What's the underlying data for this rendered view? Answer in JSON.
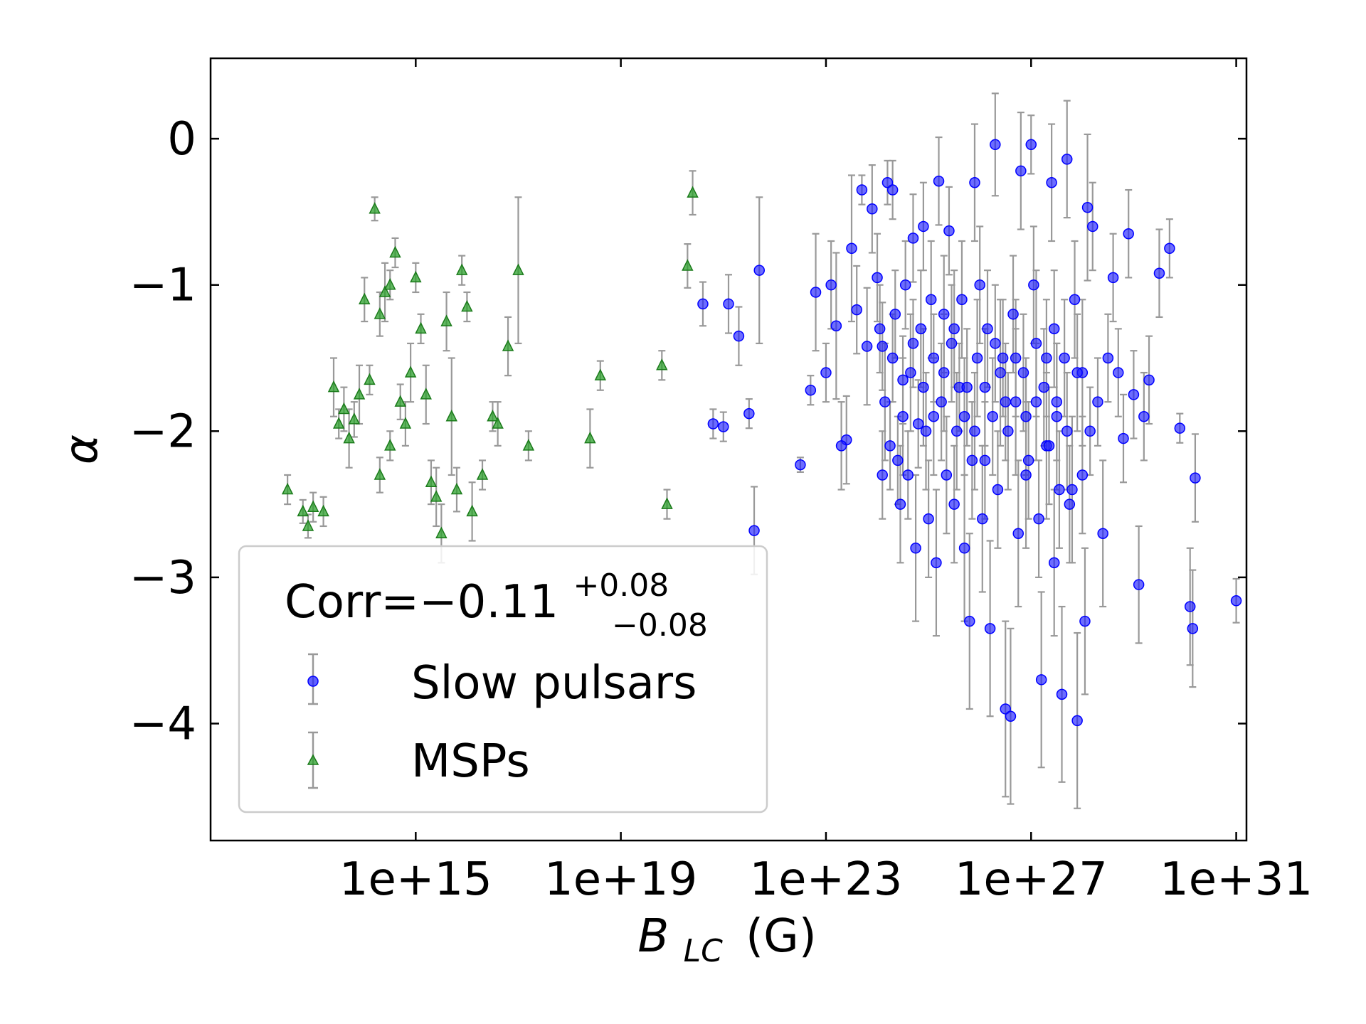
{
  "chart_data": {
    "type": "scatter",
    "title": "",
    "xlabel_main": "B",
    "xlabel_sub": "LC",
    "xlabel_unit": "(G)",
    "ylabel": "α",
    "xscale": "log",
    "xlim_exp": [
      11.0,
      31.2
    ],
    "ylim": [
      -4.8,
      0.55
    ],
    "x_ticks": [
      "1e+15",
      "1e+19",
      "1e+23",
      "1e+27",
      "1e+31"
    ],
    "x_tick_exps": [
      15,
      19,
      23,
      27,
      31
    ],
    "y_ticks": [
      0,
      -1,
      -2,
      -3,
      -4
    ],
    "y_tick_labels": [
      "0",
      "−1",
      "−2",
      "−3",
      "−4"
    ],
    "grid": false,
    "legend": {
      "placement": "lower-left",
      "corr_prefix": "Corr=−0.11",
      "corr_sup": "+0.08",
      "corr_sub": "−0.08",
      "entries": [
        "Slow pulsars",
        "MSPs"
      ]
    },
    "colors": {
      "slow": "#1f1fff",
      "msp": "#2ca02c",
      "errorbar": "#999999"
    },
    "series": [
      {
        "name": "MSPs",
        "marker": "triangle",
        "points": [
          [
            12.5,
            -2.4,
            0.1
          ],
          [
            12.8,
            -2.55,
            0.08
          ],
          [
            12.9,
            -2.65,
            0.08
          ],
          [
            13.0,
            -2.52,
            0.1
          ],
          [
            13.2,
            -2.55,
            0.1
          ],
          [
            13.4,
            -1.7,
            0.2
          ],
          [
            13.5,
            -1.95,
            0.1
          ],
          [
            13.6,
            -1.85,
            0.15
          ],
          [
            13.7,
            -2.05,
            0.2
          ],
          [
            13.9,
            -1.75,
            0.2
          ],
          [
            14.0,
            -1.1,
            0.15
          ],
          [
            14.1,
            -1.65,
            0.1
          ],
          [
            14.2,
            -0.48,
            0.08
          ],
          [
            14.3,
            -1.2,
            0.15
          ],
          [
            14.4,
            -1.05,
            0.2
          ],
          [
            14.5,
            -1.0,
            0.1
          ],
          [
            14.6,
            -0.78,
            0.1
          ],
          [
            14.7,
            -1.8,
            0.12
          ],
          [
            14.8,
            -1.95,
            0.15
          ],
          [
            14.9,
            -1.6,
            0.2
          ],
          [
            15.0,
            -0.95,
            0.1
          ],
          [
            15.1,
            -1.3,
            0.1
          ],
          [
            15.2,
            -1.75,
            0.2
          ],
          [
            15.3,
            -2.35,
            0.15
          ],
          [
            15.4,
            -2.45,
            0.2
          ],
          [
            15.5,
            -2.7,
            0.2
          ],
          [
            15.6,
            -1.25,
            0.2
          ],
          [
            15.7,
            -1.9,
            0.4
          ],
          [
            15.8,
            -2.4,
            0.15
          ],
          [
            16.0,
            -1.15,
            0.1
          ],
          [
            16.1,
            -2.55,
            0.2
          ],
          [
            16.3,
            -2.3,
            0.1
          ],
          [
            16.5,
            -1.9,
            0.1
          ],
          [
            16.6,
            -1.95,
            0.15
          ],
          [
            15.9,
            -0.9,
            0.1
          ],
          [
            14.3,
            -2.3,
            0.12
          ],
          [
            14.5,
            -2.1,
            0.1
          ],
          [
            13.8,
            -1.92,
            0.12
          ],
          [
            16.8,
            -1.42,
            0.2
          ],
          [
            17.0,
            -0.9,
            0.5
          ],
          [
            17.2,
            -2.1,
            0.1
          ],
          [
            18.4,
            -2.05,
            0.2
          ],
          [
            18.6,
            -1.62,
            0.1
          ],
          [
            19.8,
            -1.55,
            0.1
          ],
          [
            19.9,
            -2.5,
            0.1
          ],
          [
            20.4,
            -0.37,
            0.15
          ],
          [
            20.3,
            -0.87,
            0.15
          ]
        ]
      },
      {
        "name": "Slow pulsars",
        "marker": "circle",
        "points": [
          [
            20.6,
            -1.13,
            0.15
          ],
          [
            20.8,
            -1.95,
            0.1
          ],
          [
            21.0,
            -1.97,
            0.1
          ],
          [
            21.1,
            -1.13,
            0.2
          ],
          [
            21.3,
            -1.35,
            0.2
          ],
          [
            21.5,
            -1.88,
            0.1
          ],
          [
            21.6,
            -2.68,
            0.3
          ],
          [
            21.7,
            -0.9,
            0.5
          ],
          [
            22.5,
            -2.23,
            0.05
          ],
          [
            22.7,
            -1.72,
            0.1
          ],
          [
            22.8,
            -1.05,
            0.4
          ],
          [
            23.2,
            -1.28,
            0.5
          ],
          [
            23.4,
            -2.06,
            0.3
          ],
          [
            23.5,
            -0.75,
            0.5
          ],
          [
            23.6,
            -1.17,
            0.3
          ],
          [
            23.7,
            -0.35,
            0.1
          ],
          [
            23.8,
            -1.42,
            0.4
          ],
          [
            23.9,
            -0.48,
            0.3
          ],
          [
            24.0,
            -0.95,
            0.3
          ],
          [
            24.1,
            -1.42,
            0.3
          ],
          [
            24.2,
            -0.3,
            0.15
          ],
          [
            24.3,
            -0.35,
            0.2
          ],
          [
            24.4,
            -2.2,
            0.3
          ],
          [
            24.5,
            -1.65,
            0.3
          ],
          [
            24.6,
            -2.3,
            0.3
          ],
          [
            24.7,
            -0.68,
            0.3
          ],
          [
            24.8,
            -1.95,
            0.3
          ],
          [
            24.9,
            -0.6,
            0.3
          ],
          [
            25.0,
            -2.6,
            0.4
          ],
          [
            25.1,
            -1.5,
            0.3
          ],
          [
            25.2,
            -0.29,
            0.3
          ],
          [
            25.3,
            -1.2,
            0.4
          ],
          [
            25.4,
            -0.63,
            0.3
          ],
          [
            25.5,
            -2.5,
            0.4
          ],
          [
            25.6,
            -1.7,
            0.3
          ],
          [
            25.7,
            -2.8,
            0.5
          ],
          [
            25.8,
            -3.3,
            0.6
          ],
          [
            25.9,
            -0.3,
            0.4
          ],
          [
            26.0,
            -1.0,
            0.4
          ],
          [
            26.1,
            -2.2,
            0.4
          ],
          [
            26.2,
            -3.35,
            0.6
          ],
          [
            26.3,
            -0.04,
            0.35
          ],
          [
            26.4,
            -1.6,
            0.5
          ],
          [
            26.5,
            -3.9,
            0.6
          ],
          [
            26.6,
            -3.95,
            0.6
          ],
          [
            26.7,
            -1.8,
            0.5
          ],
          [
            26.8,
            -0.22,
            0.4
          ],
          [
            26.9,
            -2.3,
            0.5
          ],
          [
            27.0,
            -0.04,
            0.2
          ],
          [
            27.1,
            -1.4,
            0.5
          ],
          [
            27.2,
            -3.7,
            0.6
          ],
          [
            27.3,
            -2.1,
            0.5
          ],
          [
            27.4,
            -0.3,
            0.4
          ],
          [
            27.5,
            -1.9,
            0.5
          ],
          [
            27.6,
            -3.8,
            0.6
          ],
          [
            27.7,
            -0.14,
            0.4
          ],
          [
            27.8,
            -2.4,
            0.5
          ],
          [
            27.9,
            -3.98,
            0.6
          ],
          [
            28.0,
            -1.6,
            0.5
          ],
          [
            28.1,
            -0.47,
            0.5
          ],
          [
            23.0,
            -1.6,
            0.2
          ],
          [
            23.1,
            -1.0,
            0.3
          ],
          [
            23.3,
            -2.1,
            0.3
          ],
          [
            24.05,
            -1.3,
            0.3
          ],
          [
            24.15,
            -1.8,
            0.4
          ],
          [
            24.25,
            -2.1,
            0.3
          ],
          [
            24.35,
            -1.2,
            0.3
          ],
          [
            24.45,
            -2.5,
            0.4
          ],
          [
            24.55,
            -1.0,
            0.3
          ],
          [
            24.65,
            -1.6,
            0.4
          ],
          [
            24.75,
            -2.8,
            0.5
          ],
          [
            24.85,
            -1.3,
            0.4
          ],
          [
            24.95,
            -2.0,
            0.4
          ],
          [
            25.05,
            -1.1,
            0.4
          ],
          [
            25.15,
            -2.9,
            0.5
          ],
          [
            25.25,
            -1.8,
            0.4
          ],
          [
            25.35,
            -2.3,
            0.4
          ],
          [
            25.45,
            -1.4,
            0.4
          ],
          [
            25.55,
            -2.0,
            0.4
          ],
          [
            25.65,
            -1.1,
            0.4
          ],
          [
            25.75,
            -1.7,
            0.4
          ],
          [
            25.85,
            -2.2,
            0.4
          ],
          [
            25.95,
            -1.5,
            0.4
          ],
          [
            26.05,
            -2.6,
            0.5
          ],
          [
            26.15,
            -1.3,
            0.4
          ],
          [
            26.25,
            -1.9,
            0.4
          ],
          [
            26.35,
            -2.4,
            0.4
          ],
          [
            26.45,
            -1.5,
            0.4
          ],
          [
            26.55,
            -2.0,
            0.4
          ],
          [
            26.65,
            -1.2,
            0.4
          ],
          [
            26.75,
            -2.7,
            0.5
          ],
          [
            26.85,
            -1.6,
            0.4
          ],
          [
            26.95,
            -2.2,
            0.4
          ],
          [
            27.05,
            -1.0,
            0.4
          ],
          [
            27.15,
            -2.6,
            0.4
          ],
          [
            27.25,
            -1.7,
            0.4
          ],
          [
            27.35,
            -2.1,
            0.4
          ],
          [
            27.45,
            -1.3,
            0.4
          ],
          [
            27.55,
            -2.4,
            0.4
          ],
          [
            27.65,
            -1.5,
            0.4
          ],
          [
            24.1,
            -2.3,
            0.3
          ],
          [
            24.3,
            -1.5,
            0.3
          ],
          [
            24.5,
            -1.9,
            0.4
          ],
          [
            24.7,
            -1.4,
            0.3
          ],
          [
            24.9,
            -1.7,
            0.4
          ],
          [
            25.1,
            -1.9,
            0.4
          ],
          [
            25.3,
            -1.6,
            0.4
          ],
          [
            25.5,
            -1.3,
            0.4
          ],
          [
            25.7,
            -1.9,
            0.4
          ],
          [
            25.9,
            -2.0,
            0.4
          ],
          [
            26.1,
            -1.7,
            0.4
          ],
          [
            26.3,
            -1.4,
            0.4
          ],
          [
            26.5,
            -1.8,
            0.4
          ],
          [
            26.7,
            -1.5,
            0.4
          ],
          [
            26.9,
            -1.9,
            0.4
          ],
          [
            27.1,
            -1.8,
            0.4
          ],
          [
            27.3,
            -1.5,
            0.4
          ],
          [
            27.5,
            -1.8,
            0.4
          ],
          [
            27.7,
            -2.0,
            0.4
          ],
          [
            27.9,
            -1.6,
            0.4
          ],
          [
            28.2,
            -0.6,
            0.3
          ],
          [
            28.3,
            -1.8,
            0.3
          ],
          [
            28.4,
            -2.7,
            0.5
          ],
          [
            28.5,
            -1.5,
            0.3
          ],
          [
            28.6,
            -0.95,
            0.3
          ],
          [
            28.7,
            -1.6,
            0.3
          ],
          [
            28.8,
            -2.05,
            0.3
          ],
          [
            28.9,
            -0.65,
            0.3
          ],
          [
            29.0,
            -1.75,
            0.3
          ],
          [
            29.1,
            -3.05,
            0.4
          ],
          [
            29.2,
            -1.9,
            0.3
          ],
          [
            29.3,
            -1.65,
            0.3
          ],
          [
            29.5,
            -0.92,
            0.3
          ],
          [
            29.7,
            -0.75,
            0.2
          ],
          [
            29.9,
            -1.98,
            0.1
          ],
          [
            30.1,
            -3.2,
            0.4
          ],
          [
            30.15,
            -3.35,
            0.4
          ],
          [
            30.2,
            -2.32,
            0.3
          ],
          [
            31.0,
            -3.16,
            0.15
          ],
          [
            27.75,
            -2.5,
            0.4
          ],
          [
            27.85,
            -1.1,
            0.4
          ],
          [
            28.0,
            -2.3,
            0.4
          ],
          [
            28.05,
            -3.3,
            0.5
          ],
          [
            28.15,
            -2.0,
            0.3
          ],
          [
            27.45,
            -2.9,
            0.5
          ]
        ]
      }
    ]
  }
}
